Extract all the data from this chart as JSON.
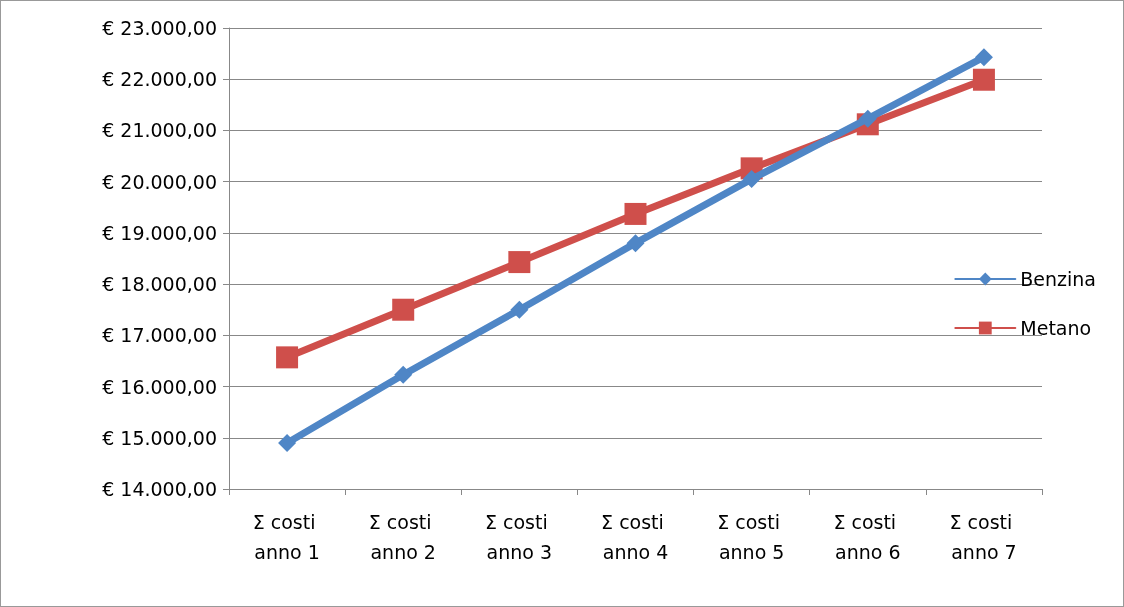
{
  "chart_data": {
    "type": "line",
    "categories": [
      "Σ costi anno 1",
      "Σ costi anno 2",
      "Σ costi anno 3",
      "Σ costi anno 4",
      "Σ costi anno 5",
      "Σ costi anno 6",
      "Σ costi anno 7"
    ],
    "series": [
      {
        "name": "Benzina",
        "color": "#4f86c6",
        "marker": "diamond",
        "values": [
          14900,
          16230,
          17500,
          18800,
          20050,
          21230,
          22430
        ]
      },
      {
        "name": "Metano",
        "color": "#cf4f4b",
        "marker": "square",
        "values": [
          16570,
          17500,
          18430,
          19370,
          20260,
          21120,
          21990
        ]
      }
    ],
    "ylim": [
      14000,
      23000
    ],
    "yticks": [
      {
        "value": 14000,
        "label": "€ 14.000,00"
      },
      {
        "value": 15000,
        "label": "€ 15.000,00"
      },
      {
        "value": 16000,
        "label": "€ 16.000,00"
      },
      {
        "value": 17000,
        "label": "€ 17.000,00"
      },
      {
        "value": 18000,
        "label": "€ 18.000,00"
      },
      {
        "value": 19000,
        "label": "€ 19.000,00"
      },
      {
        "value": 20000,
        "label": "€ 20.000,00"
      },
      {
        "value": 21000,
        "label": "€ 21.000,00"
      },
      {
        "value": 22000,
        "label": "€ 22.000,00"
      },
      {
        "value": 23000,
        "label": "€ 23.000,00"
      }
    ],
    "grid": "y",
    "legend": "right",
    "line_style": "solid"
  }
}
